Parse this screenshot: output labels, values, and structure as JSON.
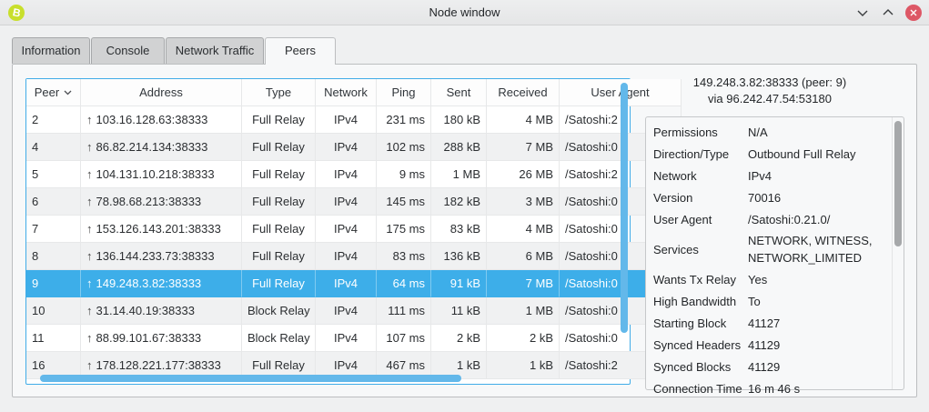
{
  "window": {
    "title": "Node window"
  },
  "titlebar": {
    "app_icon": "bitcoin-icon",
    "controls": {
      "minimize": "chevron-down",
      "maximize": "chevron-up",
      "close": "x"
    }
  },
  "tabs": [
    {
      "label": "Information",
      "active": false
    },
    {
      "label": "Console",
      "active": false
    },
    {
      "label": "Network Traffic",
      "active": false
    },
    {
      "label": "Peers",
      "active": true
    }
  ],
  "peers_table": {
    "columns": [
      "Peer",
      "Address",
      "Type",
      "Network",
      "Ping",
      "Sent",
      "Received",
      "User Agent"
    ],
    "sort_column": "Peer",
    "sort_indicator": "chevron-down",
    "outbound_arrow": "↑",
    "rows": [
      {
        "id": "2",
        "address": "103.16.128.63:38333",
        "type": "Full Relay",
        "network": "IPv4",
        "ping": "231 ms",
        "sent": "180 kB",
        "received": "4 MB",
        "user_agent": "/Satoshi:2"
      },
      {
        "id": "4",
        "address": "86.82.214.134:38333",
        "type": "Full Relay",
        "network": "IPv4",
        "ping": "102 ms",
        "sent": "288 kB",
        "received": "7 MB",
        "user_agent": "/Satoshi:0"
      },
      {
        "id": "5",
        "address": "104.131.10.218:38333",
        "type": "Full Relay",
        "network": "IPv4",
        "ping": "9 ms",
        "sent": "1 MB",
        "received": "26 MB",
        "user_agent": "/Satoshi:2"
      },
      {
        "id": "6",
        "address": "78.98.68.213:38333",
        "type": "Full Relay",
        "network": "IPv4",
        "ping": "145 ms",
        "sent": "182 kB",
        "received": "3 MB",
        "user_agent": "/Satoshi:0"
      },
      {
        "id": "7",
        "address": "153.126.143.201:38333",
        "type": "Full Relay",
        "network": "IPv4",
        "ping": "175 ms",
        "sent": "83 kB",
        "received": "4 MB",
        "user_agent": "/Satoshi:0"
      },
      {
        "id": "8",
        "address": "136.144.233.73:38333",
        "type": "Full Relay",
        "network": "IPv4",
        "ping": "83 ms",
        "sent": "136 kB",
        "received": "6 MB",
        "user_agent": "/Satoshi:0"
      },
      {
        "id": "9",
        "address": "149.248.3.82:38333",
        "type": "Full Relay",
        "network": "IPv4",
        "ping": "64 ms",
        "sent": "91 kB",
        "received": "7 MB",
        "user_agent": "/Satoshi:0",
        "selected": true
      },
      {
        "id": "10",
        "address": "31.14.40.19:38333",
        "type": "Block Relay",
        "network": "IPv4",
        "ping": "111 ms",
        "sent": "11 kB",
        "received": "1 MB",
        "user_agent": "/Satoshi:0"
      },
      {
        "id": "11",
        "address": "88.99.101.67:38333",
        "type": "Block Relay",
        "network": "IPv4",
        "ping": "107 ms",
        "sent": "2 kB",
        "received": "2 kB",
        "user_agent": "/Satoshi:0"
      },
      {
        "id": "16",
        "address": "178.128.221.177:38333",
        "type": "Full Relay",
        "network": "IPv4",
        "ping": "467 ms",
        "sent": "1 kB",
        "received": "1 kB",
        "user_agent": "/Satoshi:2"
      }
    ]
  },
  "peer_details": {
    "title_line": "149.248.3.82:38333 (peer: 9)",
    "via_line": "via 96.242.47.54:53180",
    "rows": [
      {
        "label": "Permissions",
        "value": "N/A"
      },
      {
        "label": "Direction/Type",
        "value": "Outbound Full Relay"
      },
      {
        "label": "Network",
        "value": "IPv4"
      },
      {
        "label": "Version",
        "value": "70016"
      },
      {
        "label": "User Agent",
        "value": "/Satoshi:0.21.0/"
      },
      {
        "label": "Services",
        "value": "NETWORK, WITNESS, NETWORK_LIMITED"
      },
      {
        "label": "Wants Tx Relay",
        "value": "Yes"
      },
      {
        "label": "High Bandwidth",
        "value": "To"
      },
      {
        "label": "Starting Block",
        "value": "41127"
      },
      {
        "label": "Synced Headers",
        "value": "41129"
      },
      {
        "label": "Synced Blocks",
        "value": "41129"
      },
      {
        "label": "Connection Time",
        "value": "16 m 46 s"
      }
    ]
  },
  "colors": {
    "accent": "#3daee9",
    "close_button": "#dd5765",
    "app_icon": "#c8df2c",
    "selection_text": "#ffffff"
  }
}
